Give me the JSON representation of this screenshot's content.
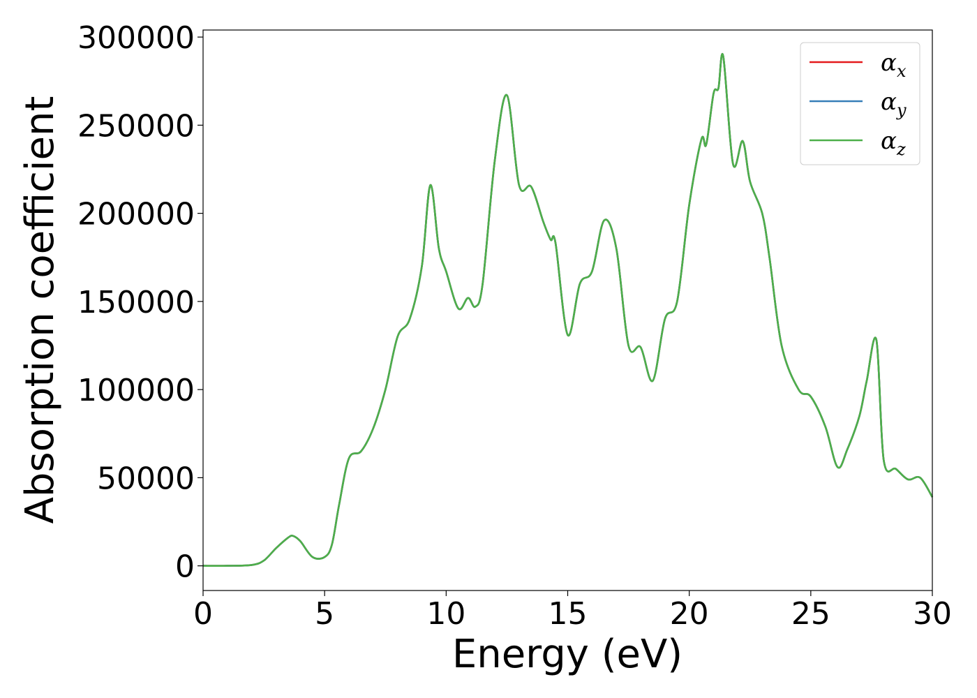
{
  "chart_data": {
    "type": "line",
    "xlabel": "Energy (eV)",
    "ylabel": "Absorption coefficient",
    "xlim": [
      0,
      30
    ],
    "ylim": [
      -14000,
      304000
    ],
    "xticks": [
      "0",
      "5",
      "10",
      "15",
      "20",
      "25",
      "30"
    ],
    "yticks": [
      "0",
      "50000",
      "100000",
      "150000",
      "200000",
      "250000",
      "300000"
    ],
    "grid": false,
    "legend_position": "top-right",
    "series": [
      {
        "name": "x",
        "color": "#e41a1c",
        "x": [
          0,
          1,
          2,
          2.5,
          3,
          3.5,
          3.7,
          4,
          4.5,
          5,
          5.3,
          5.6,
          6,
          6.5,
          7,
          7.5,
          8,
          8.5,
          9,
          9.35,
          9.7,
          10,
          10.5,
          10.9,
          11.2,
          11.5,
          12,
          12.5,
          13,
          13.5,
          14,
          14.3,
          14.5,
          15,
          15.5,
          16,
          16.5,
          17,
          17.5,
          18,
          18.5,
          19,
          19.5,
          20,
          20.5,
          20.7,
          21,
          21.2,
          21.4,
          21.8,
          22.2,
          22.5,
          23,
          23.3,
          23.8,
          24.5,
          25,
          25.6,
          26.1,
          26.5,
          27,
          27.3,
          27.7,
          28,
          28.5,
          29,
          29.5,
          30
        ],
        "y": [
          0,
          0,
          500,
          3000,
          10000,
          16000,
          17000,
          14000,
          5000,
          5000,
          12000,
          35000,
          61000,
          65000,
          78000,
          100000,
          130000,
          140000,
          170000,
          216000,
          180000,
          167000,
          146000,
          152000,
          147000,
          160000,
          230000,
          267000,
          216000,
          215000,
          195000,
          185000,
          183000,
          131000,
          160000,
          167000,
          196000,
          180000,
          125000,
          124000,
          105000,
          140000,
          150000,
          205000,
          242000,
          239000,
          268000,
          271000,
          289000,
          228000,
          241000,
          218000,
          200000,
          175000,
          125000,
          100000,
          96000,
          79000,
          56000,
          66000,
          85000,
          105000,
          128000,
          60000,
          55000,
          49000,
          50000,
          39000
        ]
      },
      {
        "name": "y",
        "color": "#377eb8",
        "x": [
          0,
          1,
          2,
          2.5,
          3,
          3.5,
          3.7,
          4,
          4.5,
          5,
          5.3,
          5.6,
          6,
          6.5,
          7,
          7.5,
          8,
          8.5,
          9,
          9.35,
          9.7,
          10,
          10.5,
          10.9,
          11.2,
          11.5,
          12,
          12.5,
          13,
          13.5,
          14,
          14.3,
          14.5,
          15,
          15.5,
          16,
          16.5,
          17,
          17.5,
          18,
          18.5,
          19,
          19.5,
          20,
          20.5,
          20.7,
          21,
          21.2,
          21.4,
          21.8,
          22.2,
          22.5,
          23,
          23.3,
          23.8,
          24.5,
          25,
          25.6,
          26.1,
          26.5,
          27,
          27.3,
          27.7,
          28,
          28.5,
          29,
          29.5,
          30
        ],
        "y": [
          0,
          0,
          500,
          3000,
          10000,
          16000,
          17000,
          14000,
          5000,
          5000,
          12000,
          35000,
          61000,
          65000,
          78000,
          100000,
          130000,
          140000,
          170000,
          216000,
          180000,
          167000,
          146000,
          152000,
          147000,
          160000,
          230000,
          267000,
          216000,
          215000,
          195000,
          185000,
          183000,
          131000,
          160000,
          167000,
          196000,
          180000,
          125000,
          124000,
          105000,
          140000,
          150000,
          205000,
          242000,
          239000,
          268000,
          271000,
          289000,
          228000,
          241000,
          218000,
          200000,
          175000,
          125000,
          100000,
          96000,
          79000,
          56000,
          66000,
          85000,
          105000,
          128000,
          60000,
          55000,
          49000,
          50000,
          39000
        ]
      },
      {
        "name": "z",
        "color": "#4daf4a",
        "x": [
          0,
          1,
          2,
          2.5,
          3,
          3.5,
          3.7,
          4,
          4.5,
          5,
          5.3,
          5.6,
          6,
          6.5,
          7,
          7.5,
          8,
          8.5,
          9,
          9.35,
          9.7,
          10,
          10.5,
          10.9,
          11.2,
          11.5,
          12,
          12.5,
          13,
          13.5,
          14,
          14.3,
          14.5,
          15,
          15.5,
          16,
          16.5,
          17,
          17.5,
          18,
          18.5,
          19,
          19.5,
          20,
          20.5,
          20.7,
          21,
          21.2,
          21.4,
          21.8,
          22.2,
          22.5,
          23,
          23.3,
          23.8,
          24.5,
          25,
          25.6,
          26.1,
          26.5,
          27,
          27.3,
          27.7,
          28,
          28.5,
          29,
          29.5,
          30
        ],
        "y": [
          0,
          0,
          500,
          3000,
          10000,
          16000,
          17000,
          14000,
          5000,
          5000,
          12000,
          35000,
          61000,
          65000,
          78000,
          100000,
          130000,
          140000,
          170000,
          216000,
          180000,
          167000,
          146000,
          152000,
          147000,
          160000,
          230000,
          267000,
          216000,
          215000,
          195000,
          185000,
          183000,
          131000,
          160000,
          167000,
          196000,
          180000,
          125000,
          124000,
          105000,
          140000,
          150000,
          205000,
          242000,
          239000,
          268000,
          271000,
          289000,
          228000,
          241000,
          218000,
          200000,
          175000,
          125000,
          100000,
          96000,
          79000,
          56000,
          66000,
          85000,
          105000,
          128000,
          60000,
          55000,
          49000,
          50000,
          39000
        ]
      }
    ]
  }
}
